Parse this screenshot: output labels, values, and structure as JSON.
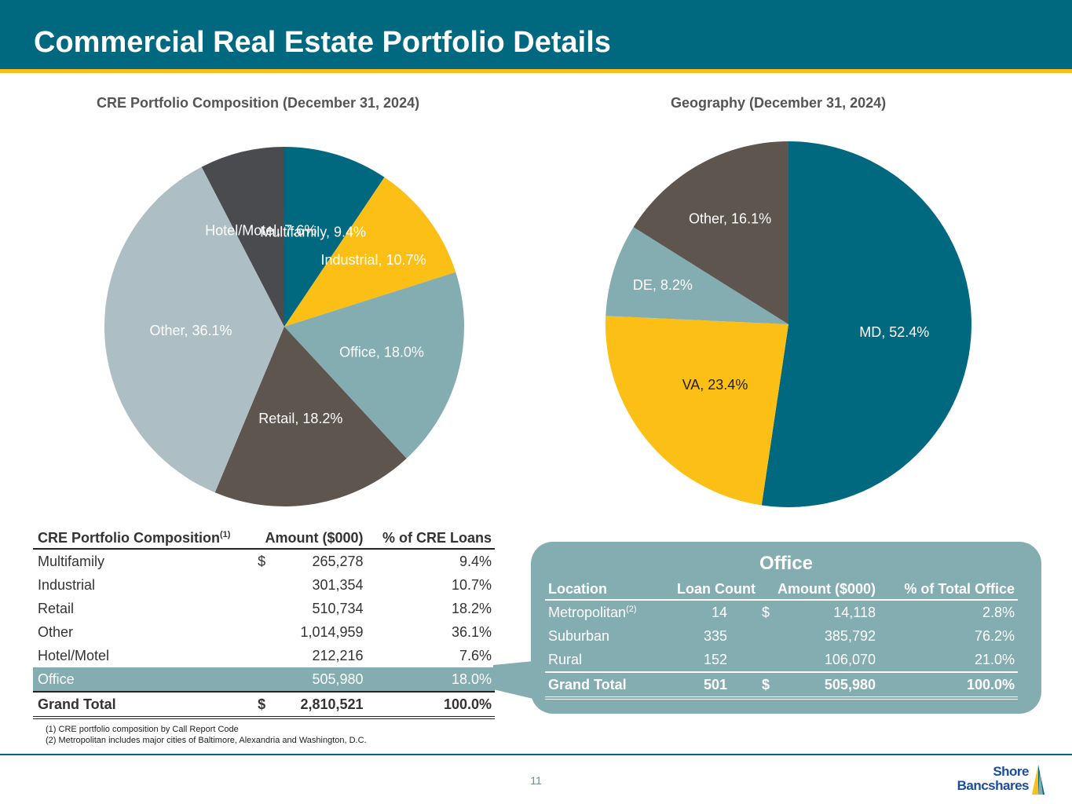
{
  "header": {
    "title": "Commercial Real Estate Portfolio Details"
  },
  "colors": {
    "teal": "#006980",
    "gold": "#fbbf16",
    "lightTeal": "#84adb1",
    "brown": "#5e554f",
    "gray": "#adbfc4",
    "charcoal": "#4a4b4f"
  },
  "chart_data": [
    {
      "type": "pie",
      "title": "CRE Portfolio Composition (December 31, 2024)",
      "labels": [
        "Multifamily",
        "Industrial",
        "Office",
        "Retail",
        "Other",
        "Hotel/Motel"
      ],
      "values": [
        9.4,
        10.7,
        18.0,
        18.2,
        36.1,
        7.6
      ],
      "data_labels": [
        "Multifamily, 9.4%",
        "Industrial, 10.7%",
        "Office, 18.0%",
        "Retail, 18.2%",
        "Other, 36.1%",
        "Hotel/Motel, 7.6%"
      ],
      "colors": [
        "#006980",
        "#fbbf16",
        "#84adb1",
        "#5e554f",
        "#adbfc4",
        "#4a4b4f"
      ],
      "label_colors": [
        "#ffffff",
        "#ffffff",
        "#ffffff",
        "#ffffff",
        "#ffffff",
        "#ffffff"
      ]
    },
    {
      "type": "pie",
      "title": "Geography (December 31, 2024)",
      "labels": [
        "MD",
        "VA",
        "DE",
        "Other"
      ],
      "values": [
        52.4,
        23.4,
        8.2,
        16.1
      ],
      "data_labels": [
        "MD, 52.4%",
        "VA, 23.4%",
        "DE, 8.2%",
        "Other, 16.1%"
      ],
      "colors": [
        "#006980",
        "#fbbf16",
        "#84adb1",
        "#5e554f"
      ],
      "label_colors": [
        "#ffffff",
        "#222222",
        "#ffffff",
        "#ffffff"
      ]
    }
  ],
  "cre_table": {
    "headers": {
      "category": "CRE Portfolio Composition",
      "category_sup": "(1)",
      "amount": "Amount ($000)",
      "pct": "% of CRE Loans"
    },
    "rows": [
      {
        "name": "Multifamily",
        "cur": "$",
        "amount": "265,278",
        "pct": "9.4",
        "sym": "%"
      },
      {
        "name": "Industrial",
        "cur": "",
        "amount": "301,354",
        "pct": "10.7",
        "sym": "%"
      },
      {
        "name": "Retail",
        "cur": "",
        "amount": "510,734",
        "pct": "18.2",
        "sym": "%"
      },
      {
        "name": "Other",
        "cur": "",
        "amount": "1,014,959",
        "pct": "36.1",
        "sym": "%"
      },
      {
        "name": "Hotel/Motel",
        "cur": "",
        "amount": "212,216",
        "pct": "7.6",
        "sym": "%"
      },
      {
        "name": "Office",
        "cur": "",
        "amount": "505,980",
        "pct": "18.0",
        "sym": "%"
      }
    ],
    "total": {
      "name": "Grand Total",
      "cur": "$",
      "amount": "2,810,521",
      "pct": "100.0",
      "sym": "%"
    }
  },
  "office": {
    "title": "Office",
    "headers": {
      "location": "Location",
      "count": "Loan Count",
      "amount": "Amount ($000)",
      "pct": "% of Total Office"
    },
    "rows": [
      {
        "location": "Metropolitan",
        "sup": "(2)",
        "count": "14",
        "cur": "$",
        "amount": "14,118",
        "pct": "2.8",
        "sym": "%"
      },
      {
        "location": "Suburban",
        "sup": "",
        "count": "335",
        "cur": "",
        "amount": "385,792",
        "pct": "76.2",
        "sym": "%"
      },
      {
        "location": "Rural",
        "sup": "",
        "count": "152",
        "cur": "",
        "amount": "106,070",
        "pct": "21.0",
        "sym": "%"
      }
    ],
    "total": {
      "location": "Grand Total",
      "count": "501",
      "cur": "$",
      "amount": "505,980",
      "pct": "100.0",
      "sym": "%"
    }
  },
  "footnotes": {
    "note1": "(1) CRE portfolio composition by Call Report Code",
    "note2": "(2) Metropolitan includes major cities of Baltimore, Alexandria and Washington, D.C."
  },
  "footer": {
    "page_number": "11",
    "logo_line1": "Shore",
    "logo_line2": "Bancshares"
  }
}
